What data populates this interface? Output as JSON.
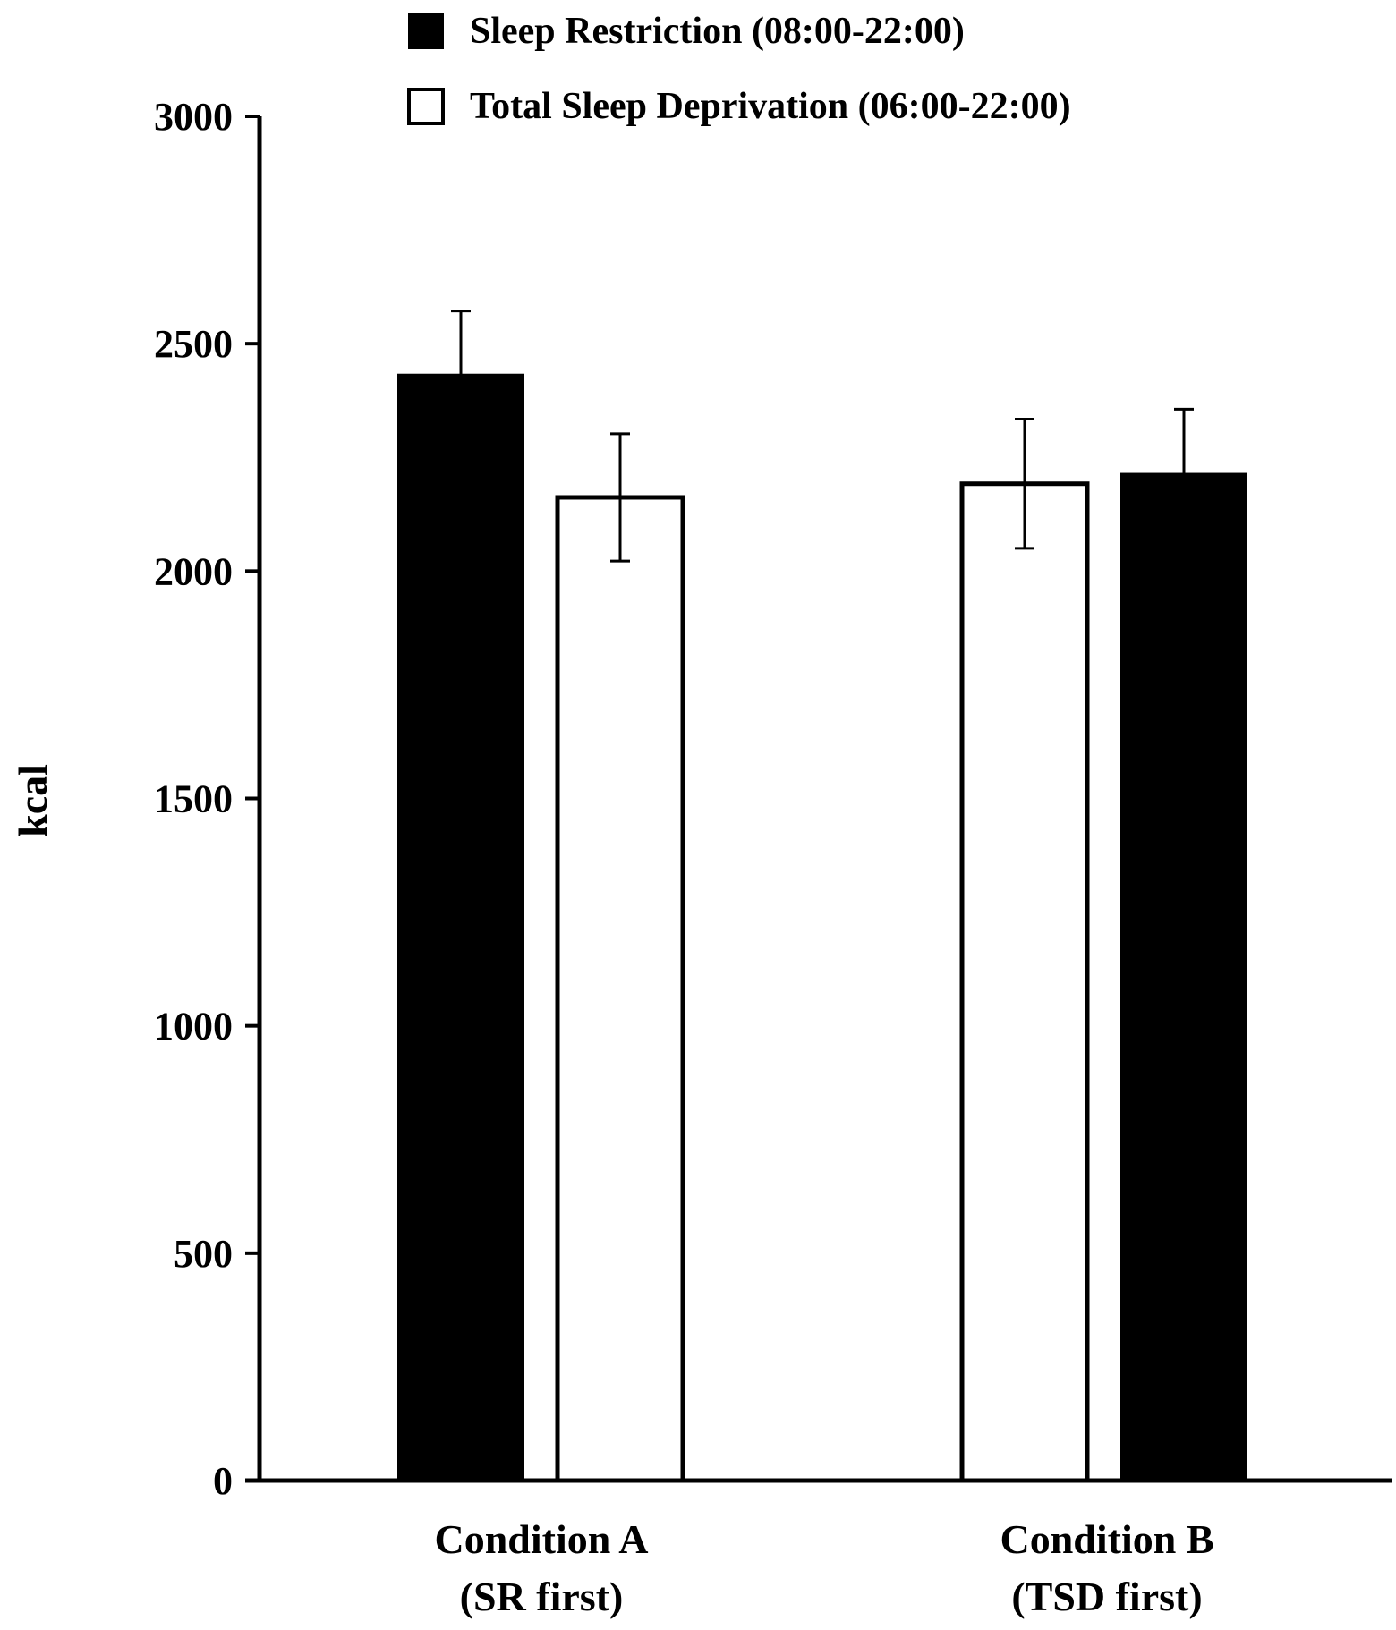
{
  "chart_data": {
    "type": "bar",
    "title": "",
    "xlabel": "",
    "ylabel": "kcal",
    "ylim": [
      0,
      3000
    ],
    "yticks": [
      0,
      500,
      1000,
      1500,
      2000,
      2500,
      3000
    ],
    "grid": false,
    "legend_position": "top",
    "categories": [
      {
        "line1": "Condition A",
        "line2": "(SR first)"
      },
      {
        "line1": "Condition B",
        "line2": "(TSD first)"
      }
    ],
    "series": [
      {
        "name": "Sleep Restriction (08:00-22:00)",
        "color": "#000000",
        "swatch": "filled"
      },
      {
        "name": "Total Sleep Deprivation (06:00-22:00)",
        "color": "#ffffff",
        "swatch": "outline"
      }
    ],
    "bars": [
      {
        "category": 0,
        "slot": 0,
        "series": 0,
        "value": 2432,
        "error": 140
      },
      {
        "category": 0,
        "slot": 1,
        "series": 1,
        "value": 2162,
        "error": 140
      },
      {
        "category": 1,
        "slot": 0,
        "series": 1,
        "value": 2192,
        "error": 142
      },
      {
        "category": 1,
        "slot": 1,
        "series": 0,
        "value": 2214,
        "error": 142
      }
    ]
  }
}
